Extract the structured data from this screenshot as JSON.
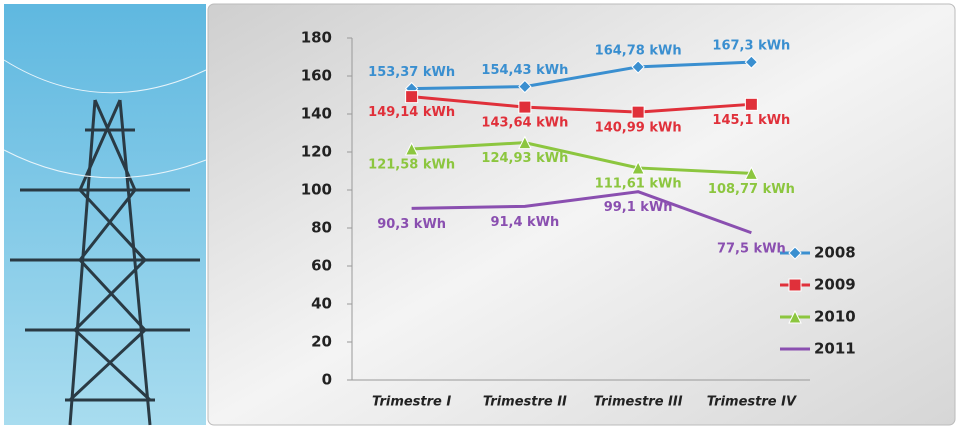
{
  "chart_data": {
    "type": "line",
    "categories": [
      "Trimestre I",
      "Trimestre II",
      "Trimestre III",
      "Trimestre IV"
    ],
    "series": [
      {
        "name": "2008",
        "color": "#3a8fd0",
        "marker": "diamond",
        "values": [
          153.37,
          154.43,
          164.78,
          167.3
        ],
        "value_labels": [
          "153,37 kWh",
          "154,43 kWh",
          "164,78 kWh",
          "167,3 kWh"
        ]
      },
      {
        "name": "2009",
        "color": "#e0303a",
        "marker": "square",
        "values": [
          149.14,
          143.64,
          140.99,
          145.1
        ],
        "value_labels": [
          "149,14 kWh",
          "143,64 kWh",
          "140,99 kWh",
          "145,1 kWh"
        ]
      },
      {
        "name": "2010",
        "color": "#8cc63f",
        "marker": "triangle",
        "values": [
          121.58,
          124.93,
          111.61,
          108.77
        ],
        "value_labels": [
          "121,58 kWh",
          "124,93 kWh",
          "111,61 kWh",
          "108,77 kWh"
        ]
      },
      {
        "name": "2011",
        "color": "#8a4fb0",
        "marker": "none",
        "values": [
          90.3,
          91.4,
          99.1,
          77.5
        ],
        "value_labels": [
          "90,3 kWh",
          "91,4 kWh",
          "99,1 kWh",
          "77,5 kWh"
        ]
      }
    ],
    "ylim": [
      0,
      180
    ],
    "yticks": [
      0,
      20,
      40,
      60,
      80,
      100,
      120,
      140,
      160,
      180
    ],
    "grid": false,
    "legend": "right"
  }
}
